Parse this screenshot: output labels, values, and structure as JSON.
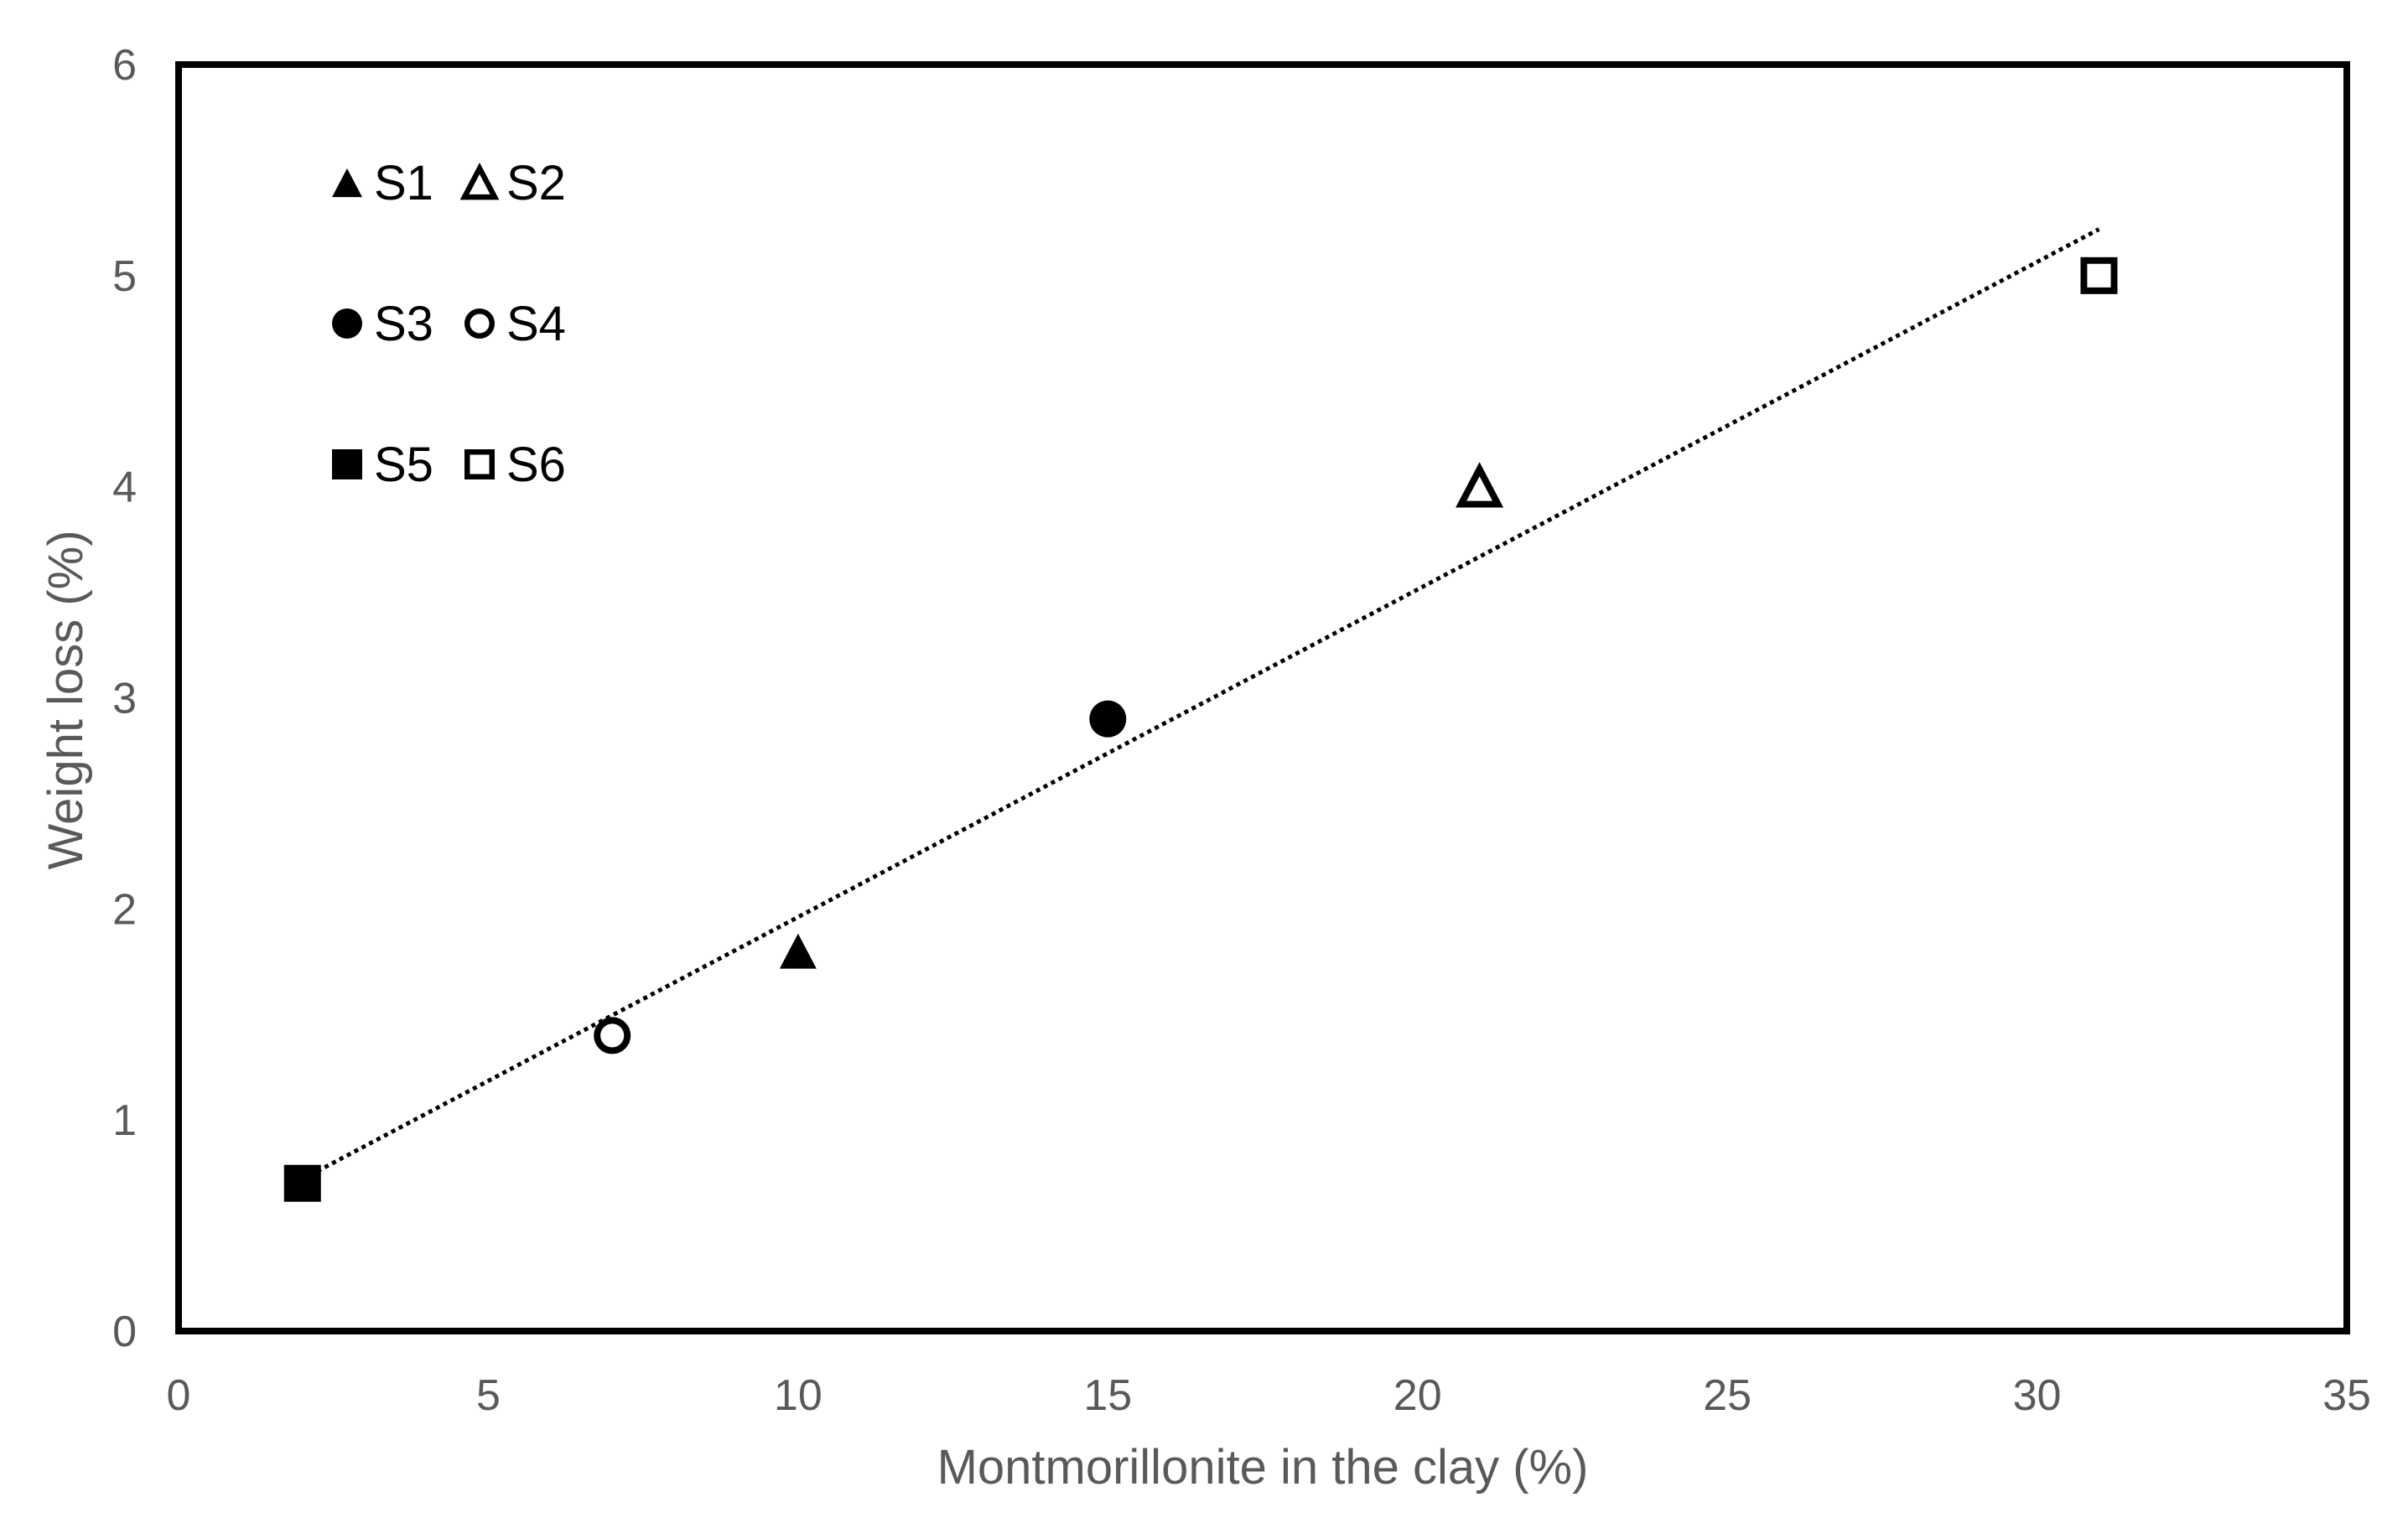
{
  "chart_data": {
    "type": "scatter",
    "title": "",
    "xlabel": "Montmorillonite in the clay (%)",
    "ylabel": "Weight loss (%)",
    "xlim": [
      0,
      35
    ],
    "ylim": [
      0,
      6
    ],
    "xticks": [
      "0",
      "5",
      "10",
      "15",
      "20",
      "25",
      "30",
      "35"
    ],
    "yticks": [
      "0",
      "1",
      "2",
      "3",
      "4",
      "5",
      "6"
    ],
    "grid": false,
    "legend_position": "top-left",
    "series": [
      {
        "name": "S1",
        "marker": "triangle",
        "filled": true,
        "x": 10,
        "y": 1.8
      },
      {
        "name": "S2",
        "marker": "triangle",
        "filled": false,
        "x": 21,
        "y": 4.0
      },
      {
        "name": "S3",
        "marker": "circle",
        "filled": true,
        "x": 15,
        "y": 2.9
      },
      {
        "name": "S4",
        "marker": "circle",
        "filled": false,
        "x": 7,
        "y": 1.4
      },
      {
        "name": "S5",
        "marker": "square",
        "filled": true,
        "x": 2,
        "y": 0.7
      },
      {
        "name": "S6",
        "marker": "square",
        "filled": false,
        "x": 31,
        "y": 5.0
      }
    ],
    "trendline": {
      "style": "dotted",
      "color": "#000000",
      "x_start": 2,
      "y_start": 0.72,
      "x_end": 31,
      "y_end": 5.22
    }
  }
}
